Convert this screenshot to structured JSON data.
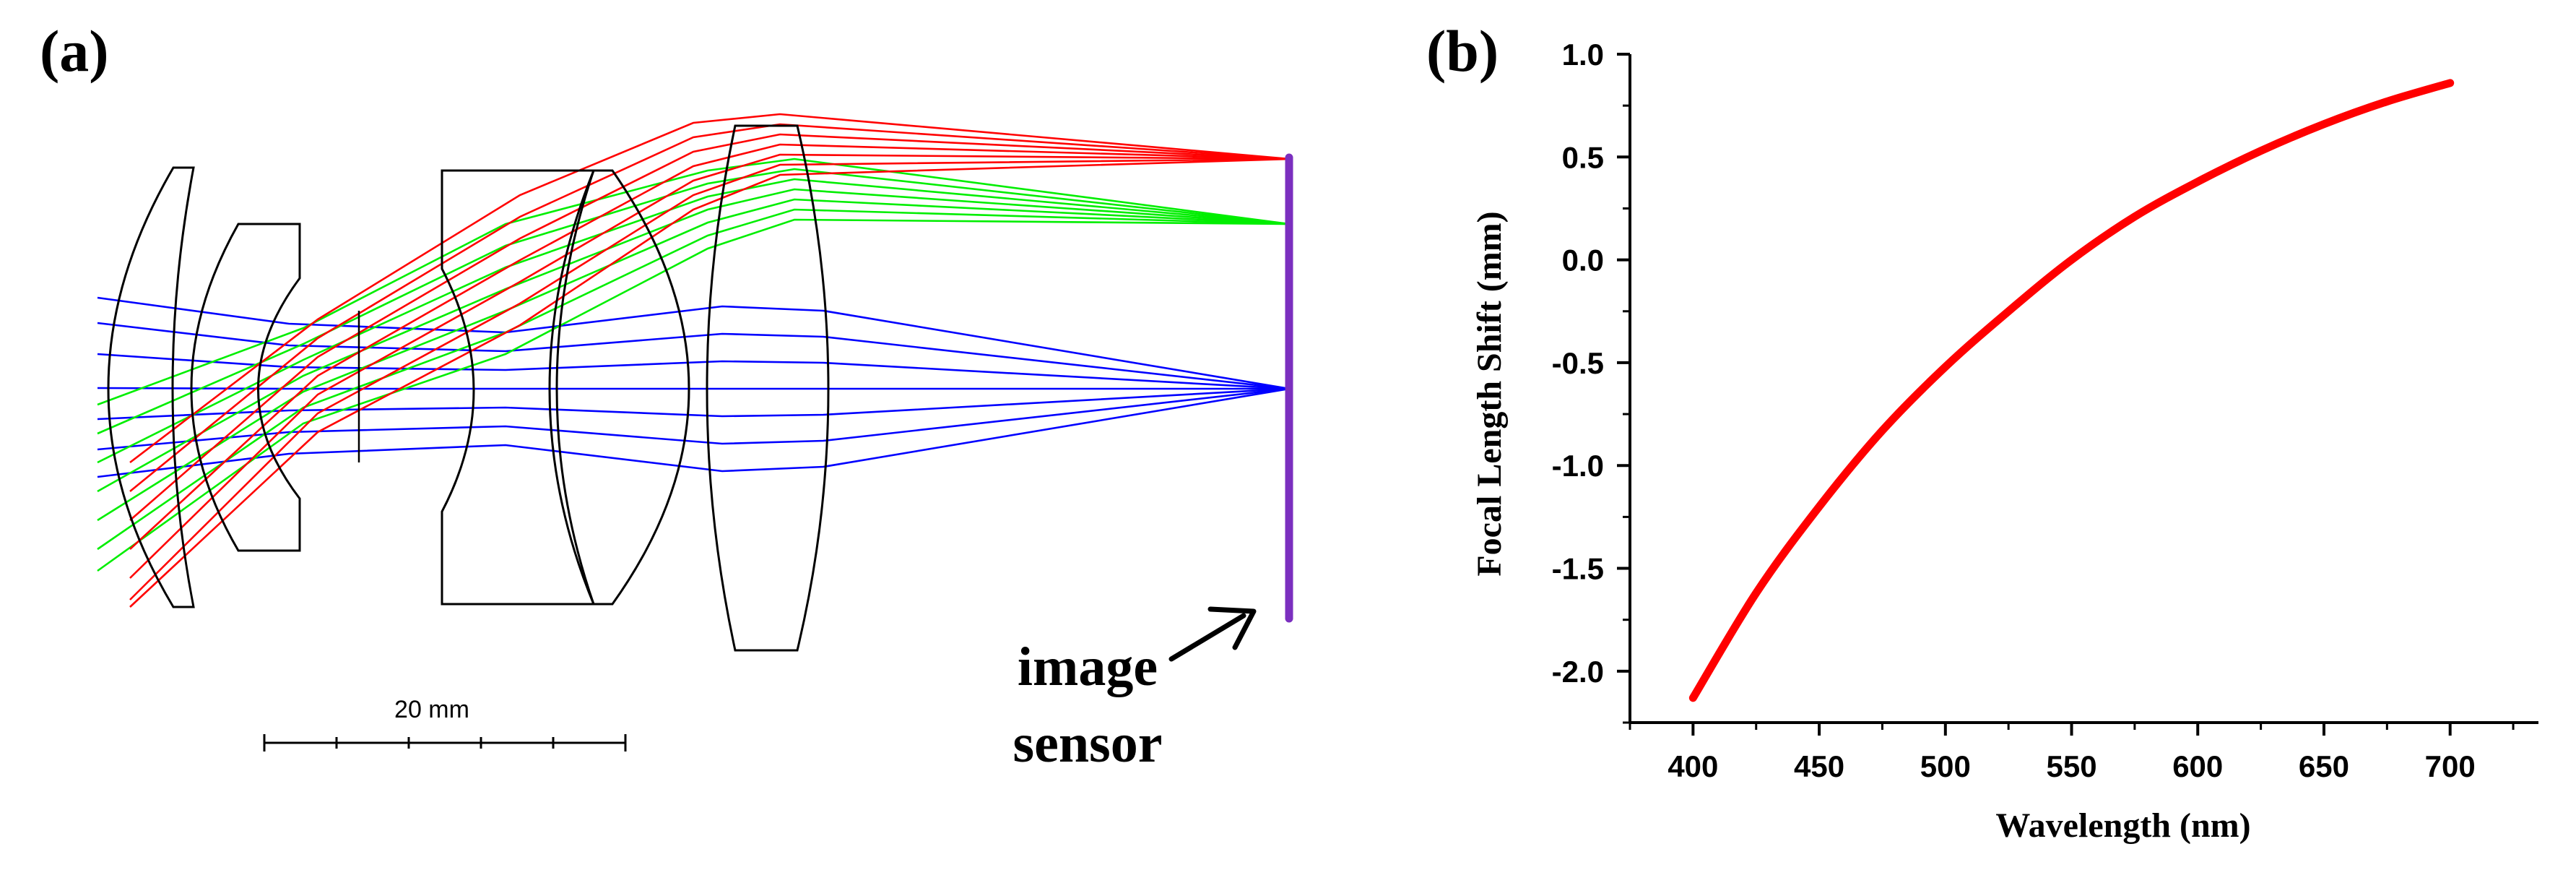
{
  "panel_a": {
    "label": "(a)",
    "scale_bar_label": "20 mm",
    "sensor_label_line1": "image",
    "sensor_label_line2": "sensor",
    "colors": {
      "red": "#ff0000",
      "green": "#00ee00",
      "blue": "#0000ff",
      "sensor": "#7b2fbf",
      "lens": "#000000"
    }
  },
  "panel_b": {
    "label": "(b)"
  },
  "chart_data": {
    "type": "line",
    "title": "",
    "xlabel": "Wavelength (nm)",
    "ylabel": "Focal Length Shift (mm)",
    "xlim": [
      375,
      735
    ],
    "ylim": [
      -2.25,
      1.0
    ],
    "xticks": [
      400,
      450,
      500,
      550,
      600,
      650,
      700
    ],
    "xtick_labels": [
      "400",
      "450",
      "500",
      "550",
      "600",
      "650",
      "700"
    ],
    "yticks": [
      -2.0,
      -1.5,
      -1.0,
      -0.5,
      0.0,
      0.5,
      1.0
    ],
    "ytick_labels": [
      "-2.0",
      "-1.5",
      "-1.0",
      "-0.5",
      "0.0",
      "0.5",
      "1.0"
    ],
    "series": [
      {
        "name": "focal shift",
        "color": "#ff0000",
        "x": [
          400,
          425,
          450,
          475,
          500,
          525,
          550,
          575,
          600,
          625,
          650,
          675,
          700
        ],
        "y": [
          -2.13,
          -1.62,
          -1.2,
          -0.83,
          -0.52,
          -0.25,
          0.0,
          0.21,
          0.38,
          0.53,
          0.66,
          0.77,
          0.86
        ]
      }
    ]
  }
}
